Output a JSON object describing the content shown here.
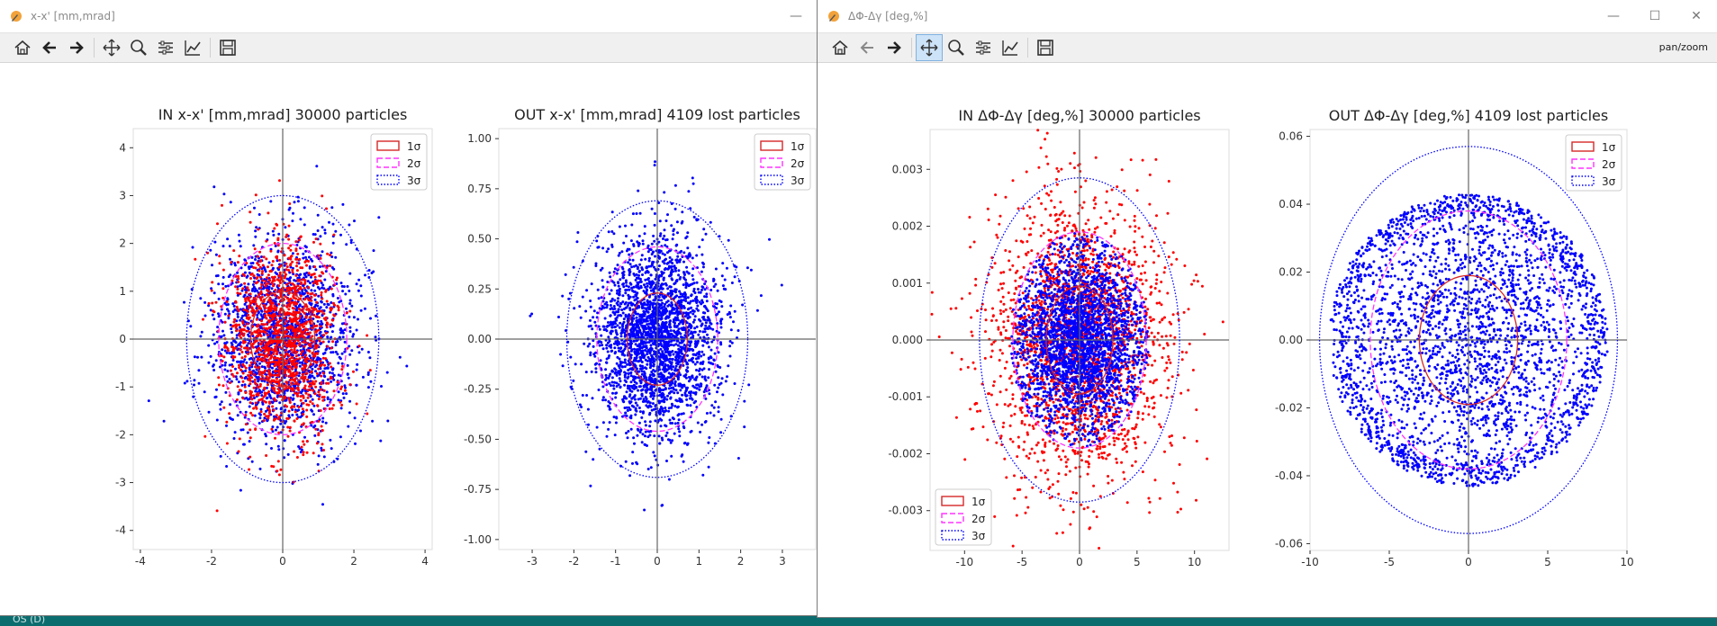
{
  "desktop": {
    "label": "OS (D)"
  },
  "windows": [
    {
      "title": "x-x' [mm,mrad]",
      "toolbar_message": "",
      "active_tool": "",
      "controls": [
        "minimize"
      ]
    },
    {
      "title": "ΔΦ-Δγ [deg,%]",
      "toolbar_message": "pan/zoom",
      "active_tool": "pan",
      "controls": [
        "minimize",
        "maximize",
        "close"
      ]
    }
  ],
  "toolbar_icons": [
    "home-icon",
    "back-arrow-icon",
    "forward-arrow-icon",
    "pan-icon",
    "zoom-icon",
    "configure-subplots-icon",
    "edit-axis-icon",
    "save-icon"
  ],
  "legend_labels": [
    "1σ",
    "2σ",
    "3σ"
  ],
  "colors": {
    "in_points": "#ff0000",
    "out_points": "#0000ff",
    "sigma1": "#d62728",
    "sigma2": "#ff33ff",
    "sigma3": "#0000ff"
  },
  "chart_data": [
    {
      "type": "scatter",
      "title": "IN x-x' [mm,mrad] 30000 particles",
      "xlim": [
        -4.2,
        4.2
      ],
      "ylim": [
        -4.4,
        4.4
      ],
      "xticks": [
        "-4",
        "-2",
        "0",
        "2",
        "4"
      ],
      "xtick_values": [
        -4,
        -2,
        0,
        2,
        4
      ],
      "yticks": [
        "-4",
        "-3",
        "-2",
        "-1",
        "0",
        "1",
        "2",
        "3",
        "4"
      ],
      "ytick_values": [
        -4,
        -3,
        -2,
        -1,
        0,
        1,
        2,
        3,
        4
      ],
      "series": [
        {
          "color": "#0000ff",
          "sigma_x": 1.0,
          "sigma_y": 1.05,
          "count": 1800
        },
        {
          "color": "#ff0000",
          "sigma_x": 0.75,
          "sigma_y": 1.0,
          "count": 1400
        }
      ],
      "ellipses": {
        "sigma1": [
          0.9,
          1.0
        ],
        "sigma2": [
          1.8,
          2.0
        ],
        "sigma3": [
          2.7,
          3.0
        ]
      },
      "legend": "top-right"
    },
    {
      "type": "scatter",
      "title": "OUT x-x' [mm,mrad] 4109 lost particles",
      "xlim": [
        -3.8,
        3.8
      ],
      "ylim": [
        -1.05,
        1.05
      ],
      "xticks": [
        "-3",
        "-2",
        "-1",
        "0",
        "1",
        "2",
        "3"
      ],
      "xtick_values": [
        -3,
        -2,
        -1,
        0,
        1,
        2,
        3
      ],
      "yticks": [
        "-1.00",
        "-0.75",
        "-0.50",
        "-0.25",
        "0.00",
        "0.25",
        "0.50",
        "0.75",
        "1.00"
      ],
      "ytick_values": [
        -1,
        -0.75,
        -0.5,
        -0.25,
        0,
        0.25,
        0.5,
        0.75,
        1
      ],
      "series": [
        {
          "color": "#0000ff",
          "sigma_x": 0.75,
          "sigma_y": 0.24,
          "count": 2600
        }
      ],
      "ellipses": {
        "sigma1": [
          0.72,
          0.23
        ],
        "sigma2": [
          1.45,
          0.46
        ],
        "sigma3": [
          2.17,
          0.69
        ]
      },
      "legend": "top-right"
    },
    {
      "type": "scatter",
      "title": "IN ΔΦ-Δγ [deg,%] 30000 particles",
      "xlim": [
        -13,
        13
      ],
      "ylim": [
        -0.0037,
        0.0037
      ],
      "xticks": [
        "-10",
        "-5",
        "0",
        "5",
        "10"
      ],
      "xtick_values": [
        -10,
        -5,
        0,
        5,
        10
      ],
      "yticks": [
        "-0.003",
        "-0.002",
        "-0.001",
        "0.000",
        "0.001",
        "0.002",
        "0.003"
      ],
      "ytick_values": [
        -0.003,
        -0.002,
        -0.001,
        0,
        0.001,
        0.002,
        0.003
      ],
      "series": [
        {
          "color": "#ff0000",
          "sigma_x": 3.8,
          "sigma_y": 0.0012,
          "count": 2200
        },
        {
          "color": "#0000ff",
          "sigma_x": 2.7,
          "sigma_y": 0.0008,
          "count": 2600,
          "clip": [
            6.0,
            0.0019
          ]
        }
      ],
      "ellipses": {
        "sigma1": [
          2.9,
          0.00095
        ],
        "sigma2": [
          5.8,
          0.0019
        ],
        "sigma3": [
          8.7,
          0.00285
        ]
      },
      "legend": "bottom-left"
    },
    {
      "type": "scatter",
      "title": "OUT ΔΦ-Δγ [deg,%] 4109 lost particles",
      "xlim": [
        -10.0,
        10.0
      ],
      "ylim": [
        -0.062,
        0.062
      ],
      "xticks": [
        "-10",
        "-5",
        "0",
        "5",
        "10"
      ],
      "xtick_values": [
        -10,
        -5,
        0,
        5,
        10
      ],
      "yticks": [
        "-0.06",
        "-0.04",
        "-0.02",
        "0.00",
        "0.02",
        "0.04",
        "0.06"
      ],
      "ytick_values": [
        -0.06,
        -0.04,
        -0.02,
        0,
        0.02,
        0.04,
        0.06
      ],
      "series": [
        {
          "color": "#0000ff",
          "sigma_x": 5.5,
          "sigma_y": 0.028,
          "count": 3000,
          "clip": [
            8.8,
            0.043
          ]
        }
      ],
      "ellipses": {
        "sigma1": [
          3.1,
          0.019
        ],
        "sigma2": [
          6.2,
          0.038
        ],
        "sigma3": [
          9.4,
          0.057
        ]
      },
      "legend": "top-right"
    }
  ]
}
